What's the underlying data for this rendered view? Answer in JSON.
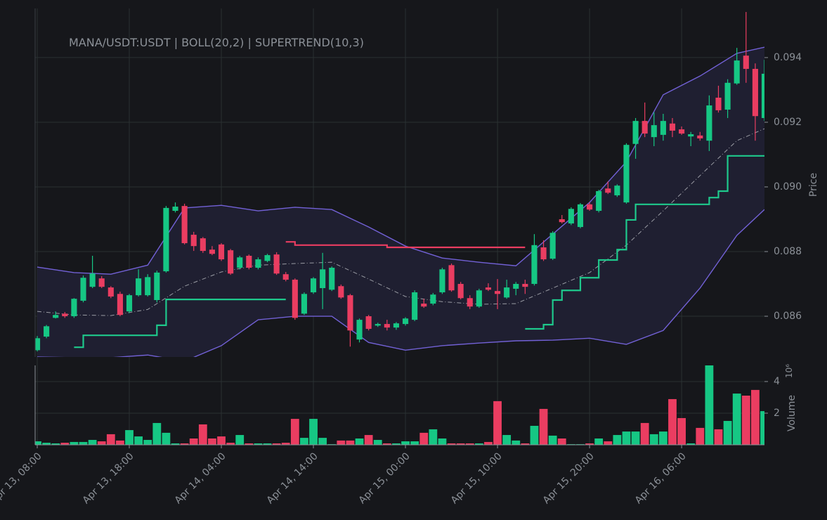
{
  "chart_data": [
    {
      "type": "candlestick",
      "title": "MANA/USDT:USDT | BOLL(20,2) | SUPERTREND(10,3)",
      "ylabel": "Price",
      "up_color": "#16c784",
      "down_color": "#ea3d61",
      "grid": true,
      "ylim": [
        0.08474,
        0.09552
      ],
      "yticks": [
        0.086,
        0.088,
        {
          "value": 0.09,
          "label": "0.090"
        },
        0.092,
        0.094
      ],
      "x": [
        "Apr 13, 08:00",
        "Apr 13, 09:00",
        "Apr 13, 10:00",
        "Apr 13, 11:00",
        "Apr 13, 12:00",
        "Apr 13, 13:00",
        "Apr 13, 14:00",
        "Apr 13, 15:00",
        "Apr 13, 16:00",
        "Apr 13, 17:00",
        "Apr 13, 18:00",
        "Apr 13, 19:00",
        "Apr 13, 20:00",
        "Apr 13, 21:00",
        "Apr 13, 22:00",
        "Apr 13, 23:00",
        "Apr 14, 00:00",
        "Apr 14, 01:00",
        "Apr 14, 02:00",
        "Apr 14, 03:00",
        "Apr 14, 04:00",
        "Apr 14, 05:00",
        "Apr 14, 06:00",
        "Apr 14, 07:00",
        "Apr 14, 08:00",
        "Apr 14, 09:00",
        "Apr 14, 10:00",
        "Apr 14, 11:00",
        "Apr 14, 12:00",
        "Apr 14, 13:00",
        "Apr 14, 14:00",
        "Apr 14, 15:00",
        "Apr 14, 16:00",
        "Apr 14, 17:00",
        "Apr 14, 18:00",
        "Apr 14, 19:00",
        "Apr 14, 20:00",
        "Apr 14, 21:00",
        "Apr 14, 22:00",
        "Apr 14, 23:00",
        "Apr 15, 00:00",
        "Apr 15, 01:00",
        "Apr 15, 02:00",
        "Apr 15, 03:00",
        "Apr 15, 04:00",
        "Apr 15, 05:00",
        "Apr 15, 06:00",
        "Apr 15, 07:00",
        "Apr 15, 08:00",
        "Apr 15, 09:00",
        "Apr 15, 10:00",
        "Apr 15, 11:00",
        "Apr 15, 12:00",
        "Apr 15, 13:00",
        "Apr 15, 14:00",
        "Apr 15, 15:00",
        "Apr 15, 16:00",
        "Apr 15, 17:00",
        "Apr 15, 18:00",
        "Apr 15, 19:00",
        "Apr 15, 20:00",
        "Apr 15, 21:00",
        "Apr 15, 22:00",
        "Apr 15, 23:00",
        "Apr 16, 00:00",
        "Apr 16, 01:00",
        "Apr 16, 02:00",
        "Apr 16, 03:00",
        "Apr 16, 04:00",
        "Apr 16, 05:00",
        "Apr 16, 06:00",
        "Apr 16, 07:00",
        "Apr 16, 08:00",
        "Apr 16, 09:00",
        "Apr 16, 10:00",
        "Apr 16, 11:00",
        "Apr 16, 12:00",
        "Apr 16, 13:00",
        "Apr 16, 14:00",
        "Apr 16, 15:00"
      ],
      "open": [
        0.08495,
        0.08537,
        0.08595,
        0.08608,
        0.086,
        0.08648,
        0.08691,
        0.08717,
        0.08689,
        0.08669,
        0.08615,
        0.08665,
        0.08665,
        0.0865,
        0.08739,
        0.08926,
        0.08941,
        0.08852,
        0.08841,
        0.08806,
        0.08822,
        0.08804,
        0.0875,
        0.08787,
        0.0875,
        0.08771,
        0.08791,
        0.0873,
        0.08713,
        0.08608,
        0.08674,
        0.08687,
        0.08682,
        0.08693,
        0.08665,
        0.08528,
        0.086,
        0.08571,
        0.08576,
        0.08565,
        0.08576,
        0.08589,
        0.08639,
        0.08639,
        0.08674,
        0.08758,
        0.087,
        0.08656,
        0.0863,
        0.08689,
        0.08678,
        0.08658,
        0.08685,
        0.087,
        0.087,
        0.08813,
        0.08778,
        0.089,
        0.08887,
        0.08876,
        0.08946,
        0.08926,
        0.08995,
        0.08974,
        0.08952,
        0.09133,
        0.09204,
        0.09154,
        0.09161,
        0.09196,
        0.09178,
        0.09156,
        0.09159,
        0.09143,
        0.09276,
        0.09239,
        0.0932,
        0.09406,
        0.09365,
        0.09213
      ],
      "high": [
        0.08539,
        0.08573,
        0.08615,
        0.08613,
        0.08656,
        0.08726,
        0.08787,
        0.08724,
        0.08693,
        0.08676,
        0.08669,
        0.08745,
        0.0873,
        0.08741,
        0.08941,
        0.08952,
        0.08948,
        0.08861,
        0.08845,
        0.08817,
        0.08826,
        0.08808,
        0.08787,
        0.08791,
        0.08782,
        0.08793,
        0.08798,
        0.08737,
        0.08717,
        0.08674,
        0.08721,
        0.08796,
        0.08754,
        0.08698,
        0.08669,
        0.08593,
        0.08604,
        0.0858,
        0.08589,
        0.08582,
        0.08597,
        0.0868,
        0.08654,
        0.08672,
        0.0875,
        0.08763,
        0.08706,
        0.08665,
        0.08685,
        0.08702,
        0.08715,
        0.08713,
        0.08706,
        0.08713,
        0.08854,
        0.08835,
        0.08863,
        0.08913,
        0.08937,
        0.0895,
        0.08952,
        0.08991,
        0.09017,
        0.09008,
        0.09135,
        0.09213,
        0.09261,
        0.09231,
        0.09226,
        0.09213,
        0.09187,
        0.0917,
        0.0917,
        0.09283,
        0.09313,
        0.09333,
        0.0943,
        0.09541,
        0.09382,
        0.09393
      ],
      "low": [
        0.08491,
        0.08532,
        0.08593,
        0.08595,
        0.08595,
        0.08643,
        0.08687,
        0.08687,
        0.08656,
        0.086,
        0.0861,
        0.08661,
        0.08661,
        0.08643,
        0.08735,
        0.08921,
        0.08822,
        0.08802,
        0.08796,
        0.08789,
        0.08771,
        0.08728,
        0.08745,
        0.08745,
        0.08745,
        0.08767,
        0.08728,
        0.08708,
        0.08589,
        0.08604,
        0.08669,
        0.08622,
        0.08678,
        0.08654,
        0.08506,
        0.08519,
        0.08556,
        0.08567,
        0.08556,
        0.08558,
        0.08571,
        0.08585,
        0.08626,
        0.08634,
        0.08669,
        0.08676,
        0.08652,
        0.08622,
        0.08626,
        0.08678,
        0.08622,
        0.08654,
        0.08665,
        0.08669,
        0.08695,
        0.08771,
        0.08774,
        0.08887,
        0.08882,
        0.08872,
        0.08926,
        0.08921,
        0.08978,
        0.08969,
        0.08948,
        0.09087,
        0.09154,
        0.09126,
        0.09143,
        0.09154,
        0.09161,
        0.09126,
        0.09143,
        0.09111,
        0.0923,
        0.09213,
        0.09316,
        0.09322,
        0.09143,
        0.09204
      ],
      "close": [
        0.08532,
        0.08569,
        0.08604,
        0.086,
        0.08654,
        0.08719,
        0.08732,
        0.08691,
        0.08661,
        0.08604,
        0.08665,
        0.08717,
        0.08721,
        0.08735,
        0.08935,
        0.08939,
        0.08826,
        0.08817,
        0.08802,
        0.08793,
        0.08776,
        0.08732,
        0.08782,
        0.0875,
        0.08776,
        0.08789,
        0.08732,
        0.08713,
        0.08595,
        0.08669,
        0.08717,
        0.08745,
        0.0875,
        0.08658,
        0.08556,
        0.08589,
        0.08561,
        0.08576,
        0.08565,
        0.08578,
        0.08593,
        0.08674,
        0.0863,
        0.08667,
        0.08745,
        0.0868,
        0.08656,
        0.0863,
        0.0868,
        0.08682,
        0.08669,
        0.08689,
        0.087,
        0.08691,
        0.0882,
        0.08776,
        0.08858,
        0.08891,
        0.08932,
        0.08946,
        0.0893,
        0.08987,
        0.08982,
        0.09004,
        0.0913,
        0.09204,
        0.09165,
        0.09191,
        0.09204,
        0.09174,
        0.09165,
        0.09163,
        0.0915,
        0.09252,
        0.09237,
        0.09322,
        0.09391,
        0.09365,
        0.09219,
        0.0935
      ],
      "bands": {
        "x": [
          "Apr 13, 08:00",
          "Apr 13, 12:00",
          "Apr 13, 16:00",
          "Apr 13, 20:00",
          "Apr 14, 00:00",
          "Apr 14, 04:00",
          "Apr 14, 08:00",
          "Apr 14, 12:00",
          "Apr 14, 16:00",
          "Apr 14, 20:00",
          "Apr 15, 00:00",
          "Apr 15, 04:00",
          "Apr 15, 08:00",
          "Apr 15, 12:00",
          "Apr 15, 16:00",
          "Apr 15, 20:00",
          "Apr 16, 00:00",
          "Apr 16, 04:00",
          "Apr 16, 08:00",
          "Apr 16, 12:00",
          "Apr 16, 15:00"
        ],
        "fill": "#1f1f31",
        "series": [
          {
            "color": "#7261d6",
            "dash": false,
            "values": [
              0.08752,
              0.08735,
              0.0873,
              0.08758,
              0.08935,
              0.08943,
              0.08926,
              0.08937,
              0.0893,
              0.08876,
              0.08817,
              0.0878,
              0.08767,
              0.08756,
              0.08854,
              0.08952,
              0.09078,
              0.09285,
              0.09343,
              0.09413,
              0.09432
            ]
          },
          {
            "color": "#9a9ca4",
            "dash": true,
            "values": [
              0.08615,
              0.08604,
              0.08602,
              0.08621,
              0.08693,
              0.08737,
              0.08758,
              0.08763,
              0.08767,
              0.08715,
              0.08661,
              0.08645,
              0.08637,
              0.08639,
              0.08687,
              0.08735,
              0.0882,
              0.08926,
              0.09035,
              0.09143,
              0.0918
            ]
          },
          {
            "color": "#7261d6",
            "dash": false,
            "values": [
              0.08474,
              0.08472,
              0.08472,
              0.0848,
              0.08461,
              0.08509,
              0.08589,
              0.086,
              0.086,
              0.08519,
              0.08495,
              0.08509,
              0.08517,
              0.08524,
              0.08526,
              0.08532,
              0.08513,
              0.08556,
              0.08687,
              0.0885,
              0.0893
            ]
          }
        ]
      },
      "supertrend": [
        {
          "color": "#1ec98c",
          "values": [
            null,
            null,
            null,
            null,
            0.08504,
            0.08541,
            0.08541,
            0.08541,
            0.08541,
            0.08541,
            0.08541,
            0.08541,
            0.08541,
            0.08572,
            0.08652,
            0.08652,
            0.08652,
            0.08652,
            0.08652,
            0.08652,
            0.08652,
            0.08652,
            0.08652,
            0.08652,
            0.08652,
            0.08652,
            0.08652,
            0.08652,
            null,
            null,
            null,
            null,
            null,
            null,
            null,
            null,
            null,
            null,
            null,
            null,
            null,
            null,
            null,
            null,
            null,
            null,
            null,
            null,
            null,
            null,
            null,
            null,
            null,
            0.08561,
            0.08561,
            0.08574,
            0.0865,
            0.0868,
            0.0868,
            0.08719,
            0.08719,
            0.08774,
            0.08774,
            0.08806,
            0.08898,
            0.08946,
            0.08946,
            0.08946,
            0.08946,
            0.08946,
            0.08946,
            0.08946,
            0.08946,
            0.08967,
            0.08987,
            0.09096,
            0.09096,
            0.09096,
            0.09096,
            0.09096
          ]
        },
        {
          "color": "#ea3d61",
          "values": [
            null,
            null,
            null,
            null,
            null,
            null,
            null,
            null,
            null,
            null,
            null,
            null,
            null,
            null,
            null,
            null,
            null,
            null,
            null,
            null,
            null,
            null,
            null,
            null,
            null,
            null,
            null,
            0.0883,
            0.0882,
            0.0882,
            0.0882,
            0.0882,
            0.0882,
            0.0882,
            0.0882,
            0.0882,
            0.0882,
            0.0882,
            0.08813,
            0.08813,
            0.08813,
            0.08813,
            0.08813,
            0.08813,
            0.08813,
            0.08813,
            0.08813,
            0.08813,
            0.08813,
            0.08813,
            0.08813,
            0.08813,
            0.08813,
            0.08813,
            null,
            null,
            null,
            null,
            null,
            null,
            null,
            null,
            null,
            null,
            null,
            null,
            null,
            null,
            null,
            null,
            null,
            null,
            null,
            null,
            null,
            null,
            null,
            null,
            null,
            null
          ]
        }
      ]
    },
    {
      "type": "bar",
      "ylabel": "Volume",
      "offset_label": "10⁶",
      "grid": true,
      "ylim": [
        0,
        5020000
      ],
      "yticks": [
        {
          "value": 2000000,
          "label": "2"
        },
        {
          "value": 4000000,
          "label": "4"
        }
      ],
      "xticks": [
        "Apr 13, 08:00",
        "Apr 13, 18:00",
        "Apr 14, 04:00",
        "Apr 14, 14:00",
        "Apr 15, 00:00",
        "Apr 15, 10:00",
        "Apr 15, 20:00",
        "Apr 16, 06:00"
      ],
      "values": [
        220000,
        130000,
        90000,
        130000,
        180000,
        180000,
        310000,
        220000,
        670000,
        270000,
        930000,
        530000,
        310000,
        1380000,
        760000,
        90000,
        90000,
        400000,
        1290000,
        400000,
        530000,
        130000,
        620000,
        90000,
        90000,
        90000,
        90000,
        130000,
        1640000,
        440000,
        1640000,
        440000,
        40000,
        270000,
        270000,
        400000,
        620000,
        310000,
        90000,
        90000,
        220000,
        220000,
        760000,
        980000,
        400000,
        90000,
        90000,
        90000,
        90000,
        180000,
        2760000,
        620000,
        270000,
        90000,
        1200000,
        2270000,
        580000,
        400000,
        40000,
        40000,
        90000,
        400000,
        220000,
        620000,
        840000,
        840000,
        1380000,
        670000,
        840000,
        2890000,
        1690000,
        90000,
        1070000,
        5020000,
        980000,
        1510000,
        3240000,
        3110000,
        3470000,
        2130000
      ]
    }
  ]
}
